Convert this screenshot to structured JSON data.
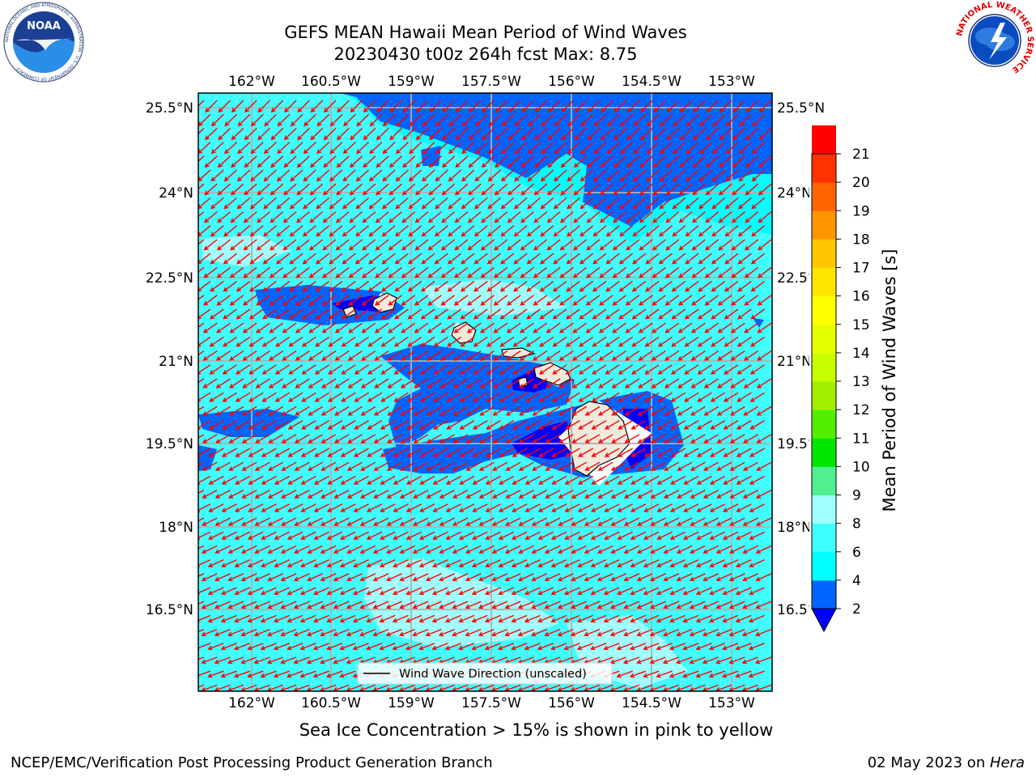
{
  "title_line1": "GEFS MEAN Hawaii Mean Period of Wind Waves",
  "title_line2": "20230430 t00z 264h fcst   Max: 8.75",
  "map": {
    "lon_labels": [
      "162°W",
      "160.5°W",
      "159°W",
      "157.5°W",
      "156°W",
      "154.5°W",
      "153°W"
    ],
    "lat_labels": [
      "25.5°N",
      "24°N",
      "22.5°N",
      "21°N",
      "19.5°N",
      "18°N",
      "16.5°N"
    ],
    "ocean_color": "#00ffff",
    "arrow_color": "#ff0000",
    "gridline_color": "#b0b0b0",
    "legend_label": "Wind Wave Direction (unscaled)"
  },
  "colorbar": {
    "label": "Mean Period of Wind Waves [s]",
    "ticks": [
      "2",
      "4",
      "6",
      "8",
      "9",
      "10",
      "11",
      "12",
      "13",
      "14",
      "15",
      "16",
      "17",
      "18",
      "19",
      "20",
      "21"
    ],
    "colors": [
      "#0064ff",
      "#00ffff",
      "#40ffff",
      "#a0ffff",
      "#50f090",
      "#00e600",
      "#50f000",
      "#a0f000",
      "#c8ff00",
      "#e6ff00",
      "#ffff00",
      "#ffe600",
      "#ffc800",
      "#ff9600",
      "#ff6400",
      "#ff3200",
      "#ff0000"
    ],
    "under_color": "#0000ff"
  },
  "note": "Sea Ice Concentration > 15% is shown in pink to yellow",
  "footer_left": "NCEP/EMC/Verification Post Processing Product Generation Branch",
  "footer_date": "02 May 2023 on ",
  "footer_host": "Hera",
  "logos": {
    "noaa_text": "NOAA",
    "noaa_ring_text": "NATIONAL OCEANIC AND ATMOSPHERIC ADMINISTRATION · U.S. DEPARTMENT OF COMMERCE",
    "nws_ring_text": "NATIONAL WEATHER SERVICE"
  }
}
